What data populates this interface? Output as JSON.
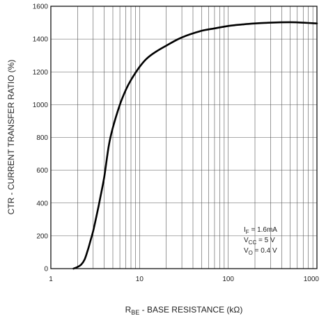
{
  "chart_data": {
    "type": "line",
    "xscale": "log",
    "xlim": [
      1,
      1000
    ],
    "ylim": [
      0,
      1600
    ],
    "grid": true,
    "xticks": [
      "1",
      "10",
      "100",
      "1000"
    ],
    "yticks": [
      "0",
      "200",
      "400",
      "600",
      "800",
      "1000",
      "1200",
      "1400",
      "1600"
    ],
    "xlabel": {
      "prefix": "R",
      "sub": "BE",
      "rest": " - BASE RESISTANCE (kΩ)"
    },
    "ylabel": "CTR - CURRENT TRANSFER RATIO (%)",
    "annotations": [
      {
        "main": "I",
        "sub": "F",
        "rest": " = 1.6mA"
      },
      {
        "main": "V",
        "sub": "CC",
        "rest": " = 5 V"
      },
      {
        "main": "V",
        "sub": "O",
        "rest": " = 0.4 V"
      }
    ],
    "series": [
      {
        "x": [
          1.8,
          2.0,
          2.2,
          2.4,
          2.6,
          2.8,
          3.0,
          3.3,
          3.6,
          4.0,
          4.5,
          5.0,
          6.0,
          7.0,
          8.0,
          10,
          12,
          15,
          20,
          30,
          50,
          70,
          100,
          150,
          200,
          300,
          500,
          700,
          1000
        ],
        "y": [
          0,
          10,
          25,
          55,
          110,
          170,
          230,
          330,
          430,
          560,
          750,
          860,
          1000,
          1090,
          1150,
          1230,
          1280,
          1320,
          1360,
          1410,
          1450,
          1465,
          1480,
          1490,
          1495,
          1500,
          1503,
          1500,
          1495
        ]
      }
    ]
  }
}
